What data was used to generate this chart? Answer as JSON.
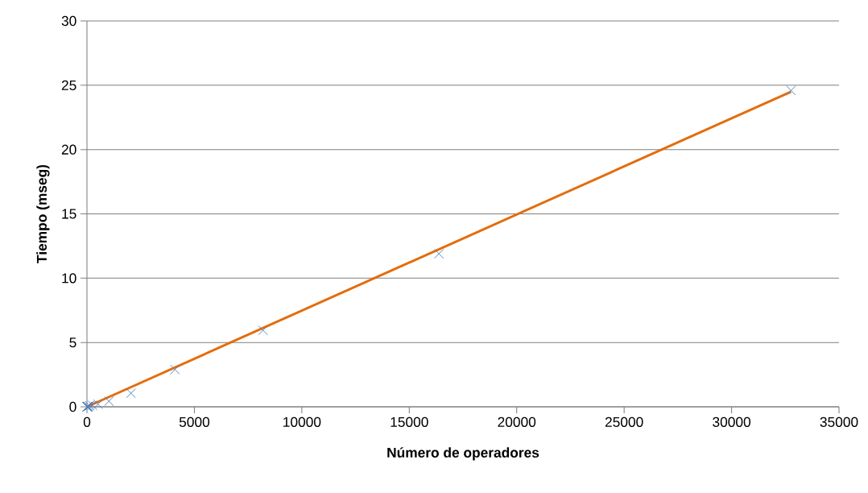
{
  "chart_data": {
    "type": "scatter",
    "xlabel": "Número de operadores",
    "ylabel": "Tiempo (mseg)",
    "xlim": [
      0,
      35000
    ],
    "xticks": [
      0,
      5000,
      10000,
      15000,
      20000,
      25000,
      30000,
      35000
    ],
    "ylim": [
      0,
      30
    ],
    "yticks": [
      0,
      5,
      10,
      15,
      20,
      25,
      30
    ],
    "grid": "y",
    "marker": "cross",
    "series": [
      {
        "color": "#4f81bd",
        "x": [
          2,
          4,
          8,
          16,
          32,
          64,
          128,
          256,
          512,
          1024,
          2048,
          4096,
          8192,
          16384,
          32768
        ],
        "values": [
          0,
          0,
          0,
          0.01,
          0.02,
          0.04,
          0.08,
          0.12,
          0.2,
          0.44,
          1.06,
          2.9,
          5.95,
          11.9,
          24.6
        ]
      },
      {
        "type": "line",
        "color": "#e46c0a",
        "marker": "none",
        "x": [
          0,
          32768
        ],
        "values": [
          0,
          24.5
        ]
      }
    ]
  }
}
